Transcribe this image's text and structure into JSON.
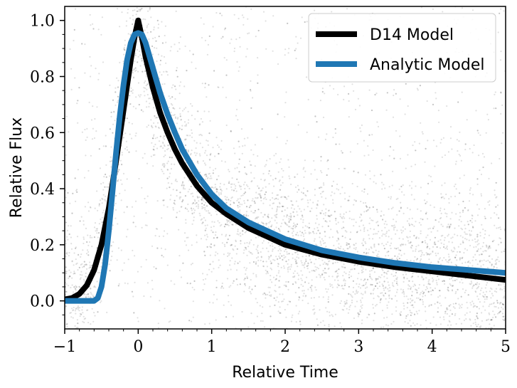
{
  "chart_data": {
    "type": "line",
    "xlabel": "Relative Time",
    "ylabel": "Relative Flux",
    "xlim": [
      -1,
      5
    ],
    "ylim": [
      -0.1,
      1.05
    ],
    "x_ticks": [
      -1,
      0,
      1,
      2,
      3,
      4,
      5
    ],
    "x_tick_labels": [
      "−1",
      "0",
      "1",
      "2",
      "3",
      "4",
      "5"
    ],
    "y_ticks": [
      0.0,
      0.2,
      0.4,
      0.6,
      0.8,
      1.0
    ],
    "y_tick_labels": [
      "0.0",
      "0.2",
      "0.4",
      "0.6",
      "0.8",
      "1.0"
    ],
    "grid": false,
    "legend": {
      "placement": "top-right"
    },
    "series": [
      {
        "name": "D14 Model",
        "color": "#000000",
        "x": [
          -1.0,
          -0.9,
          -0.8,
          -0.7,
          -0.6,
          -0.5,
          -0.4,
          -0.3,
          -0.2,
          -0.1,
          -0.05,
          0.0,
          0.05,
          0.1,
          0.2,
          0.3,
          0.4,
          0.5,
          0.6,
          0.8,
          1.0,
          1.2,
          1.5,
          2.0,
          2.5,
          3.0,
          3.5,
          4.0,
          4.5,
          5.0
        ],
        "y": [
          0.005,
          0.01,
          0.025,
          0.055,
          0.11,
          0.2,
          0.33,
          0.5,
          0.68,
          0.86,
          0.94,
          1.0,
          0.94,
          0.87,
          0.76,
          0.67,
          0.6,
          0.54,
          0.49,
          0.41,
          0.35,
          0.31,
          0.26,
          0.2,
          0.165,
          0.14,
          0.12,
          0.105,
          0.09,
          0.075
        ]
      },
      {
        "name": "Analytic Model",
        "color": "#1f77b4",
        "x": [
          -1.0,
          -0.8,
          -0.6,
          -0.55,
          -0.5,
          -0.45,
          -0.4,
          -0.35,
          -0.3,
          -0.25,
          -0.2,
          -0.15,
          -0.1,
          -0.05,
          0.0,
          0.05,
          0.1,
          0.2,
          0.3,
          0.4,
          0.5,
          0.6,
          0.8,
          1.0,
          1.2,
          1.5,
          2.0,
          2.5,
          3.0,
          3.5,
          4.0,
          4.5,
          5.0
        ],
        "y": [
          0.0,
          0.0,
          0.0,
          0.01,
          0.05,
          0.13,
          0.25,
          0.39,
          0.53,
          0.66,
          0.77,
          0.86,
          0.92,
          0.95,
          0.955,
          0.95,
          0.92,
          0.83,
          0.74,
          0.665,
          0.6,
          0.54,
          0.45,
          0.38,
          0.33,
          0.28,
          0.22,
          0.18,
          0.155,
          0.135,
          0.12,
          0.11,
          0.1
        ]
      }
    ],
    "scatter_background": {
      "description_color": "#000000",
      "opacity": 0.12
    }
  }
}
